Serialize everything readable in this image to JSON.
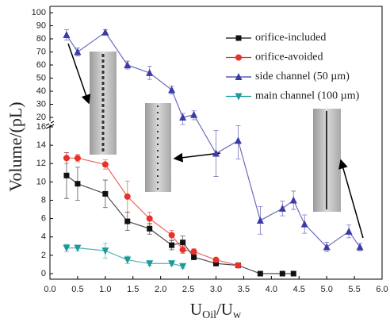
{
  "chart_data": {
    "type": "line",
    "x_label": {
      "parts": [
        "U",
        "Oil",
        "/U",
        "w"
      ]
    },
    "y_label": "Volume/(pL)",
    "xlim": [
      0,
      6
    ],
    "xticks": [
      {
        "value": 0,
        "label": "0.0"
      },
      {
        "value": 0.5,
        "label": "0.5"
      },
      {
        "value": 1,
        "label": "1.0"
      },
      {
        "value": 1.5,
        "label": "1.5"
      },
      {
        "value": 2,
        "label": "2.0"
      },
      {
        "value": 2.5,
        "label": "2.5"
      },
      {
        "value": 3,
        "label": "3.0"
      },
      {
        "value": 3.5,
        "label": "3.5"
      },
      {
        "value": 4,
        "label": "4.0"
      },
      {
        "value": 4.5,
        "label": "4.5"
      },
      {
        "value": 5,
        "label": "5.0"
      },
      {
        "value": 5.5,
        "label": "5.5"
      },
      {
        "value": 6,
        "label": "6.0"
      }
    ],
    "ylim": [
      0,
      100
    ],
    "y_break": [
      16,
      20
    ],
    "yticks": [
      0,
      2,
      4,
      6,
      8,
      10,
      12,
      14,
      16,
      20,
      30,
      40,
      50,
      60,
      70,
      80,
      90,
      100
    ],
    "series": [
      {
        "name": "orifice-included",
        "color": "#111111",
        "marker": "square",
        "x": [
          0.3,
          0.5,
          1.0,
          1.4,
          1.8,
          2.2,
          2.4,
          2.6,
          3.0,
          3.4,
          3.8,
          4.2,
          4.4
        ],
        "values": [
          10.7,
          9.8,
          8.7,
          5.7,
          4.9,
          3.1,
          3.4,
          1.8,
          1.1,
          0.9,
          0,
          0,
          0
        ],
        "errors": [
          2.5,
          1.8,
          1.5,
          1.0,
          0.6,
          0.5,
          0.7,
          0.3,
          0.2,
          0.2,
          0,
          0,
          0
        ]
      },
      {
        "name": "orifice-avoided",
        "color": "#e8312a",
        "marker": "circle",
        "x": [
          0.3,
          0.5,
          1.0,
          1.4,
          1.8,
          2.2,
          2.4,
          2.6,
          3.0,
          3.4
        ],
        "values": [
          12.6,
          12.6,
          11.9,
          8.4,
          6.0,
          4.2,
          2.6,
          2.4,
          1.5,
          0.9
        ],
        "errors": [
          0.6,
          0.4,
          0.5,
          1.7,
          0.7,
          0.5,
          0.4,
          0.3,
          0.2,
          0.2
        ]
      },
      {
        "name": "side channel (50 µm)",
        "color": "#3b3ba8",
        "marker": "triangle",
        "x": [
          0.3,
          0.5,
          1.0,
          1.4,
          1.8,
          2.2,
          2.4,
          2.6,
          3.0,
          3.4,
          3.8,
          4.2,
          4.4,
          4.6,
          5.0,
          5.4,
          5.6
        ],
        "values": [
          83,
          70,
          85,
          60,
          54,
          41,
          20,
          22,
          13.1,
          14.5,
          5.8,
          7.1,
          8.0,
          5.4,
          2.9,
          4.6,
          2.9
        ],
        "errors": [
          4,
          3,
          2,
          3,
          5,
          3,
          3,
          3,
          2.5,
          2.0,
          1.5,
          0.8,
          1.0,
          1.0,
          0.5,
          0.7,
          0.4
        ]
      },
      {
        "name": "main channel (100 µm)",
        "color": "#1a9a9a",
        "marker": "triangle-down",
        "x": [
          0.3,
          0.5,
          1.0,
          1.4,
          1.8,
          2.2,
          2.4
        ],
        "values": [
          2.8,
          2.8,
          2.5,
          1.5,
          1.1,
          1.1,
          0.8
        ],
        "errors": [
          0.4,
          0.3,
          0.8,
          0.4,
          0.2,
          0.2,
          0.2
        ]
      }
    ]
  }
}
